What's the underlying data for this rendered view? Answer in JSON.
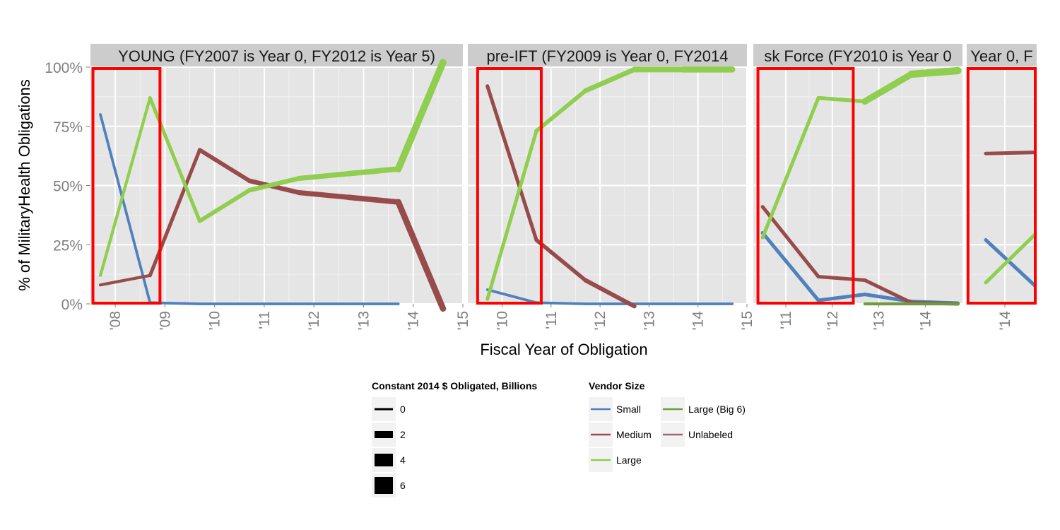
{
  "chart_data": {
    "type": "line",
    "xlabel": "Fiscal Year of Obligation",
    "ylabel": "% of  MilitaryHealth  Obligations",
    "y_ticks": [
      "0%",
      "25%",
      "50%",
      "75%",
      "100%"
    ],
    "ylim": [
      0,
      1
    ],
    "grid": true,
    "legend_position": "bottom",
    "panels": [
      {
        "strip": "YOUNG (FY2007 is Year 0, FY2012 is Year 5)",
        "xlim": [
          2007.5,
          2015
        ],
        "x_ticks": [
          "'08",
          "'09",
          "'10",
          "'11",
          "'12",
          "'13",
          "'14",
          "'15"
        ],
        "highlight": [
          2007.55,
          2008.9
        ],
        "series": [
          {
            "vendor": "Small",
            "x": [
              2007.7,
              2008.7,
              2009.7,
              2010.7,
              2011.7,
              2012.7,
              2013.7
            ],
            "y": [
              0.8,
              0.005,
              0.0,
              0.0,
              0.0,
              0.0,
              0.0
            ],
            "w": [
              0.3,
              0.3,
              0.3,
              0.3,
              0.3,
              0.3
            ]
          },
          {
            "vendor": "Medium",
            "x": [
              2007.7,
              2008.7,
              2009.7,
              2010.7,
              2011.7,
              2012.7,
              2013.7,
              2014.6
            ],
            "y": [
              0.08,
              0.12,
              0.65,
              0.52,
              0.47,
              0.45,
              0.43,
              -0.02
            ],
            "w": [
              0.5,
              0.8,
              1.1,
              1.4,
              1.6,
              1.8,
              2.2
            ]
          },
          {
            "vendor": "Large",
            "x": [
              2007.7,
              2008.7,
              2009.7,
              2010.7,
              2011.7,
              2012.7,
              2013.7,
              2014.6
            ],
            "y": [
              0.12,
              0.87,
              0.35,
              0.48,
              0.53,
              0.55,
              0.57,
              1.02
            ],
            "w": [
              0.5,
              0.8,
              1.1,
              1.4,
              1.6,
              1.8,
              2.6
            ]
          }
        ]
      },
      {
        "strip": "pre-IFT (FY2009 is Year 0, FY2014",
        "xlim": [
          2009.3,
          2015
        ],
        "x_ticks": [
          "'10",
          "'11",
          "'12",
          "'13",
          "'14",
          "'15"
        ],
        "highlight": [
          2009.5,
          2010.8
        ],
        "series": [
          {
            "vendor": "Small",
            "x": [
              2009.7,
              2010.7,
              2011.7,
              2012.7,
              2013.7,
              2014.7
            ],
            "y": [
              0.06,
              0.005,
              0.0,
              0.0,
              0.0,
              0.0
            ],
            "w": [
              0.3,
              0.3,
              0.3,
              0.3,
              0.3
            ]
          },
          {
            "vendor": "Medium",
            "x": [
              2009.7,
              2010.7,
              2011.7,
              2012.7
            ],
            "y": [
              0.92,
              0.27,
              0.1,
              -0.01
            ],
            "w": [
              0.8,
              1.0,
              1.2
            ]
          },
          {
            "vendor": "Large",
            "x": [
              2009.7,
              2010.7,
              2011.7,
              2012.7,
              2013.7,
              2014.7
            ],
            "y": [
              0.02,
              0.73,
              0.9,
              0.99,
              0.99,
              0.99
            ],
            "w": [
              0.8,
              1.1,
              1.5,
              1.9,
              2.1
            ]
          }
        ]
      },
      {
        "strip": "sk Force (FY2010 is Year 0",
        "xlim": [
          2010.3,
          2014.8
        ],
        "x_ticks": [
          "'11",
          "'12",
          "'13",
          "'14"
        ],
        "highlight": [
          2010.4,
          2012.45
        ],
        "series": [
          {
            "vendor": "Small",
            "x": [
              2010.5,
              2011.7,
              2012.7,
              2013.7,
              2014.7
            ],
            "y": [
              0.3,
              0.015,
              0.04,
              0.01,
              0.003
            ],
            "w": [
              0.8,
              0.8,
              0.8,
              0.8
            ]
          },
          {
            "vendor": "Medium",
            "x": [
              2010.5,
              2011.7,
              2012.7,
              2013.7,
              2014.7
            ],
            "y": [
              0.41,
              0.115,
              0.1,
              0.005,
              0.0
            ],
            "w": [
              0.8,
              0.8,
              0.8,
              0.8
            ]
          },
          {
            "vendor": "Large",
            "x": [
              2010.5,
              2011.7,
              2012.7,
              2013.7,
              2014.7
            ],
            "y": [
              0.28,
              0.87,
              0.855,
              0.97,
              0.985
            ],
            "w": [
              0.8,
              0.9,
              2.4,
              2.8
            ]
          },
          {
            "vendor": "Large (Big 6)",
            "x": [
              2012.7,
              2013.7,
              2014.7
            ],
            "y": [
              0.0,
              0.0,
              0.0
            ],
            "w": [
              0.5,
              0.5
            ]
          }
        ]
      },
      {
        "strip": "Year 0, F",
        "xlim": [
          2013.4,
          2014.5
        ],
        "x_ticks": [
          "'14"
        ],
        "highlight": [
          2013.42,
          2014.5
        ],
        "series": [
          {
            "vendor": "Small",
            "x": [
              2013.7,
              2014.5
            ],
            "y": [
              0.27,
              0.07
            ],
            "w": [
              0.8
            ]
          },
          {
            "vendor": "Medium",
            "x": [
              2013.7,
              2014.5
            ],
            "y": [
              0.635,
              0.64
            ],
            "w": [
              0.8
            ]
          },
          {
            "vendor": "Large",
            "x": [
              2013.7,
              2014.5
            ],
            "y": [
              0.09,
              0.3
            ],
            "w": [
              0.8
            ]
          }
        ]
      }
    ],
    "legend": {
      "size_title": "Constant 2014 $ Obligated, Billions",
      "size_entries": [
        "0",
        "2",
        "4",
        "6"
      ],
      "color_title": "Vendor Size",
      "color_entries": [
        {
          "label": "Small",
          "color": "#4f81bd"
        },
        {
          "label": "Medium",
          "color": "#984b4b"
        },
        {
          "label": "Large",
          "color": "#8fce4f"
        },
        {
          "label": "Large (Big 6)",
          "color": "#6e9c3c"
        },
        {
          "label": "Unlabeled",
          "color": "#9a6a6a"
        }
      ]
    }
  }
}
